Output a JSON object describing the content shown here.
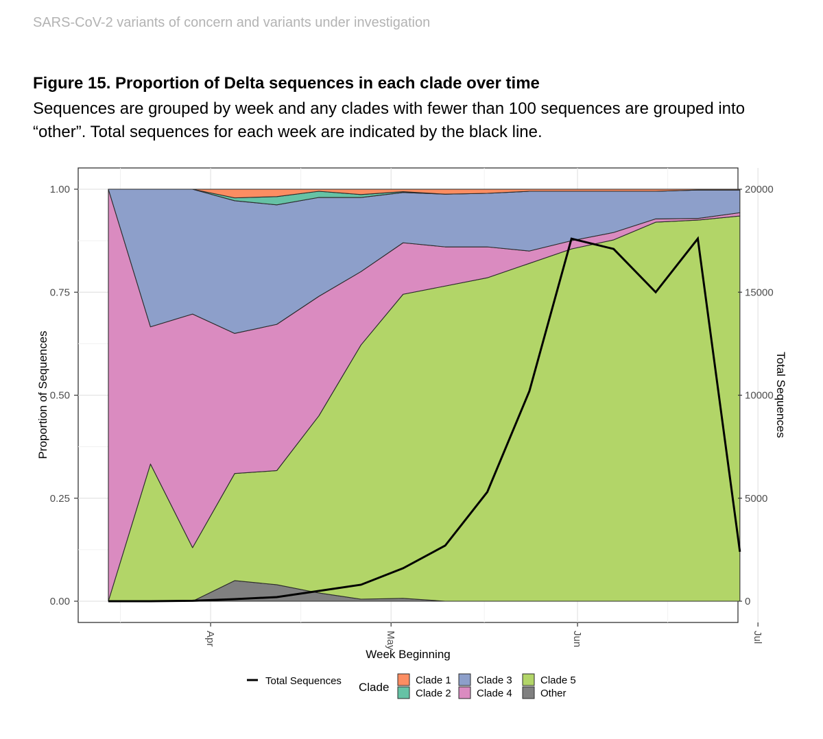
{
  "header": {
    "text": "SARS-CoV-2 variants of concern and variants under investigation"
  },
  "figure": {
    "title": "Figure 15. Proportion of Delta sequences in each clade over time",
    "caption": "Sequences are grouped by week and any clades with fewer than 100 sequences are grouped into “other”. Total sequences for each week are indicated by the black line."
  },
  "chart_data": {
    "type": "area",
    "xlabel": "Week Beginning",
    "ylabel": "Proportion of Sequences",
    "y2label": "Total Sequences",
    "x_ticks": [
      "Apr",
      "May",
      "Jun",
      "Jul"
    ],
    "y_ticks": [
      "0.00",
      "0.25",
      "0.50",
      "0.75",
      "1.00"
    ],
    "y2_ticks": [
      "0",
      "5000",
      "10000",
      "15000",
      "20000"
    ],
    "ylim": [
      0,
      1
    ],
    "y2lim": [
      0,
      20000
    ],
    "grid": true,
    "legend_position": "bottom",
    "legend_title": "Clade",
    "line_legend_label": "Total Sequences",
    "x": [
      "2021-03-15",
      "2021-03-22",
      "2021-03-29",
      "2021-04-05",
      "2021-04-12",
      "2021-04-19",
      "2021-04-26",
      "2021-05-03",
      "2021-05-10",
      "2021-05-17",
      "2021-05-24",
      "2021-05-31",
      "2021-06-07",
      "2021-06-14",
      "2021-06-21",
      "2021-06-28"
    ],
    "stack_order_bottom_to_top": [
      "Other",
      "Clade 5",
      "Clade 4",
      "Clade 3",
      "Clade 2",
      "Clade 1"
    ],
    "series": [
      {
        "name": "Other",
        "color": "#808080",
        "values": [
          0,
          0,
          0,
          0.05,
          0.04,
          0.02,
          0.005,
          0.007,
          0,
          0,
          0,
          0,
          0,
          0,
          0,
          0
        ]
      },
      {
        "name": "Clade 5",
        "color": "#b2d568",
        "values": [
          0,
          0.333,
          0.13,
          0.26,
          0.277,
          0.43,
          0.617,
          0.738,
          0.765,
          0.785,
          0.82,
          0.855,
          0.877,
          0.92,
          0.925,
          0.935
        ]
      },
      {
        "name": "Clade 4",
        "color": "#da8bc0",
        "values": [
          1,
          0.333,
          0.567,
          0.34,
          0.355,
          0.29,
          0.178,
          0.125,
          0.095,
          0.075,
          0.03,
          0.02,
          0.018,
          0.008,
          0.004,
          0.008
        ]
      },
      {
        "name": "Clade 3",
        "color": "#8d9fca",
        "values": [
          0,
          0.334,
          0.303,
          0.322,
          0.29,
          0.24,
          0.18,
          0.122,
          0.128,
          0.13,
          0.145,
          0.12,
          0.1,
          0.067,
          0.069,
          0.055
        ]
      },
      {
        "name": "Clade 2",
        "color": "#66c2a5",
        "values": [
          0,
          0,
          0,
          0.007,
          0.02,
          0.015,
          0.007,
          0.002,
          0,
          0,
          0,
          0,
          0,
          0,
          0,
          0
        ]
      },
      {
        "name": "Clade 1",
        "color": "#fc8d62",
        "values": [
          0,
          0,
          0,
          0.021,
          0.018,
          0.005,
          0.013,
          0.006,
          0.012,
          0.01,
          0.005,
          0.005,
          0.005,
          0.005,
          0.002,
          0.002
        ]
      }
    ],
    "total_sequences": [
      0,
      0,
      20,
      100,
      200,
      500,
      800,
      1600,
      2700,
      5300,
      10200,
      17600,
      17100,
      15000,
      17600,
      2400
    ]
  }
}
